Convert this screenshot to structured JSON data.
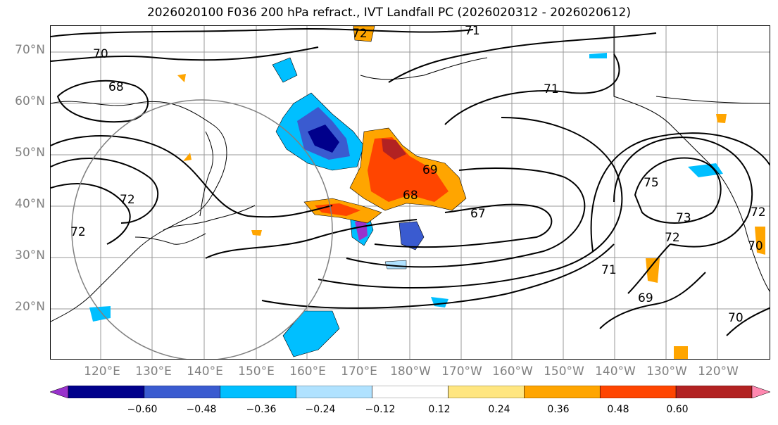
{
  "title": "2026020100 F036 200 hPa refract., IVT Landfall PC (2026020312 - 2026020612)",
  "lat_labels": [
    "70°N",
    "60°N",
    "50°N",
    "40°N",
    "30°N",
    "20°N"
  ],
  "lon_labels": [
    "120°E",
    "130°E",
    "140°E",
    "150°E",
    "160°E",
    "170°E",
    "180°W",
    "170°W",
    "160°W",
    "150°W",
    "140°W",
    "130°W",
    "120°W"
  ],
  "contour_labels": [
    "72",
    "71",
    "70",
    "68",
    "71",
    "69",
    "68",
    "67",
    "72",
    "72",
    "75",
    "73",
    "72",
    "71",
    "69",
    "70",
    "72",
    "70"
  ],
  "colorbar": {
    "ticks": [
      "−0.60",
      "−0.48",
      "−0.36",
      "−0.24",
      "−0.12",
      "0.12",
      "0.24",
      "0.36",
      "0.48",
      "0.60"
    ],
    "colors": [
      "#9932cc",
      "#00008b",
      "#3a5bd0",
      "#00bfff",
      "#b0e2ff",
      "#ffffff",
      "#ffe680",
      "#ffa500",
      "#ff4500",
      "#b22222",
      "#ff88b0"
    ]
  }
}
